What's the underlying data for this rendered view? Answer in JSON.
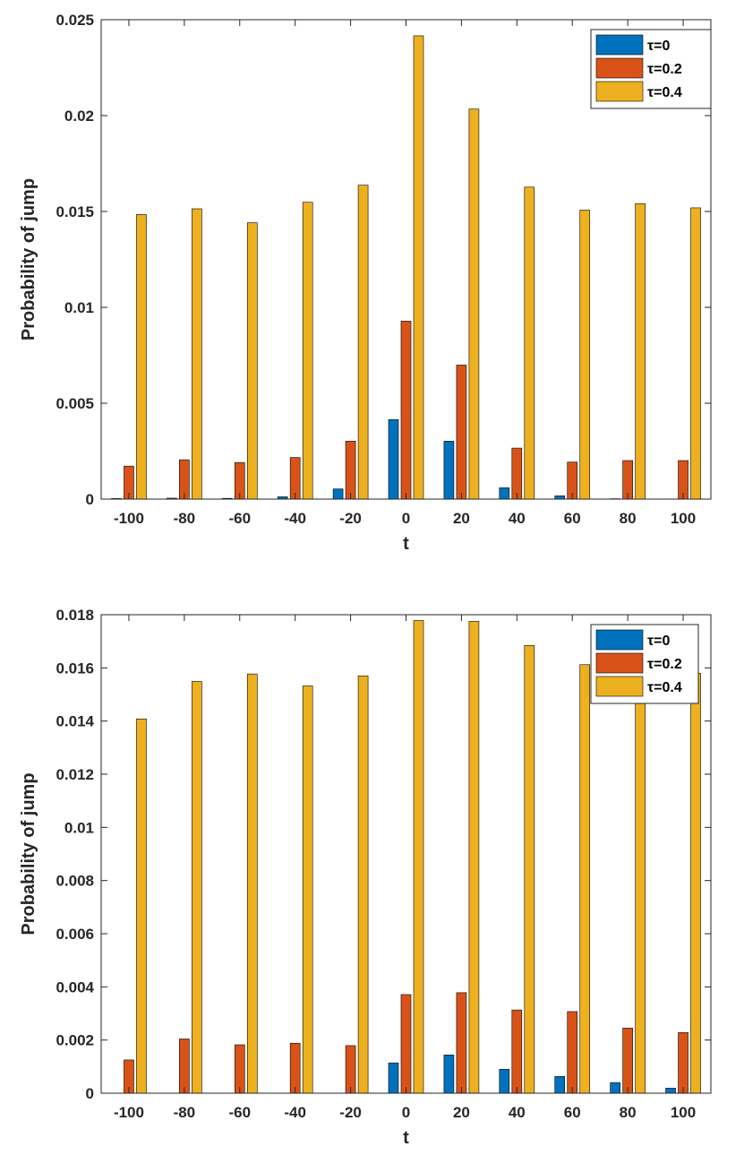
{
  "colors": {
    "tau0": "#0072BD",
    "tau02": "#D95319",
    "tau04": "#EDB120",
    "axis": "#262626"
  },
  "chart_data": [
    {
      "type": "bar",
      "title": "",
      "xlabel": "t",
      "ylabel": "Probability of jump",
      "categories": [
        "-100",
        "-80",
        "-60",
        "-40",
        "-20",
        "0",
        "20",
        "40",
        "60",
        "80",
        "100"
      ],
      "ylim": [
        0,
        0.025
      ],
      "yticks": [
        "0",
        "0.005",
        "0.01",
        "0.015",
        "0.02",
        "0.025"
      ],
      "ytick_values": [
        0,
        0.005,
        0.01,
        0.015,
        0.02,
        0.025
      ],
      "legend": {
        "position": "top-right",
        "entries": [
          "τ=0",
          "τ=0.2",
          "τ=0.4"
        ]
      },
      "series": [
        {
          "name": "τ=0",
          "values": [
            3e-05,
            5e-05,
            4e-05,
            0.00012,
            0.00053,
            0.00415,
            0.00302,
            0.00059,
            0.00017,
            2e-05,
            1e-05
          ]
        },
        {
          "name": "τ=0.2",
          "values": [
            0.00172,
            0.00205,
            0.00191,
            0.00217,
            0.00302,
            0.00928,
            0.00699,
            0.00266,
            0.00193,
            0.00201,
            0.00201
          ]
        },
        {
          "name": "τ=0.4",
          "values": [
            0.01484,
            0.01514,
            0.01441,
            0.01548,
            0.01637,
            0.02416,
            0.02034,
            0.01627,
            0.01507,
            0.01541,
            0.01519
          ]
        }
      ]
    },
    {
      "type": "bar",
      "title": "",
      "xlabel": "t",
      "ylabel": "Probability of jump",
      "categories": [
        "-100",
        "-80",
        "-60",
        "-40",
        "-20",
        "0",
        "20",
        "40",
        "60",
        "80",
        "100"
      ],
      "ylim": [
        0,
        0.018
      ],
      "yticks": [
        "0",
        "0.002",
        "0.004",
        "0.006",
        "0.008",
        "0.01",
        "0.012",
        "0.014",
        "0.016",
        "0.018"
      ],
      "ytick_values": [
        0,
        0.002,
        0.004,
        0.006,
        0.008,
        0.01,
        0.012,
        0.014,
        0.016,
        0.018
      ],
      "legend": {
        "position": "top-right",
        "entries": [
          "τ=0",
          "τ=0.2",
          "τ=0.4"
        ]
      },
      "series": [
        {
          "name": "τ=0",
          "values": [
            0.0,
            0.0,
            0.0,
            0.0,
            0.0,
            0.00114,
            0.00144,
            0.0009,
            0.00063,
            0.0004,
            0.00019
          ]
        },
        {
          "name": "τ=0.2",
          "values": [
            0.00125,
            0.00204,
            0.00182,
            0.00188,
            0.00179,
            0.00371,
            0.00378,
            0.00313,
            0.00307,
            0.00245,
            0.00228
          ]
        },
        {
          "name": "τ=0.4",
          "values": [
            0.01408,
            0.01549,
            0.01577,
            0.01532,
            0.0157,
            0.01778,
            0.01775,
            0.01684,
            0.01612,
            0.0148,
            0.0158
          ]
        }
      ]
    }
  ]
}
